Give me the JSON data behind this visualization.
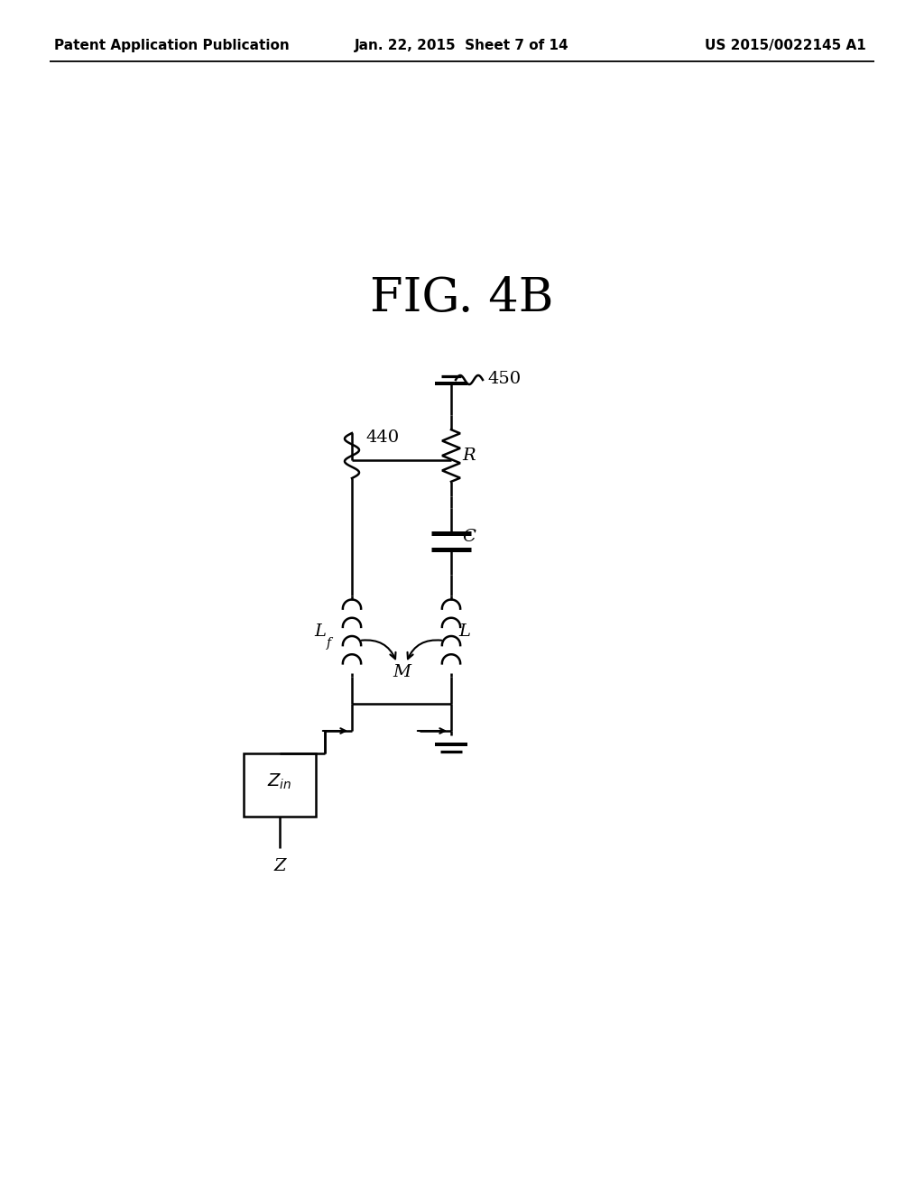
{
  "title": "FIG. 4B",
  "header_left": "Patent Application Publication",
  "header_center": "Jan. 22, 2015  Sheet 7 of 14",
  "header_right": "US 2015/0022145 A1",
  "background_color": "#ffffff",
  "line_color": "#000000",
  "label_450": "450",
  "label_440": "440",
  "label_R": "R",
  "label_C": "C",
  "label_L": "L",
  "label_Lf_main": "L",
  "label_Lf_sub": "f",
  "label_M": "M",
  "label_Zin_main": "Z",
  "label_Zin_sub": "in",
  "label_Z": "Z"
}
